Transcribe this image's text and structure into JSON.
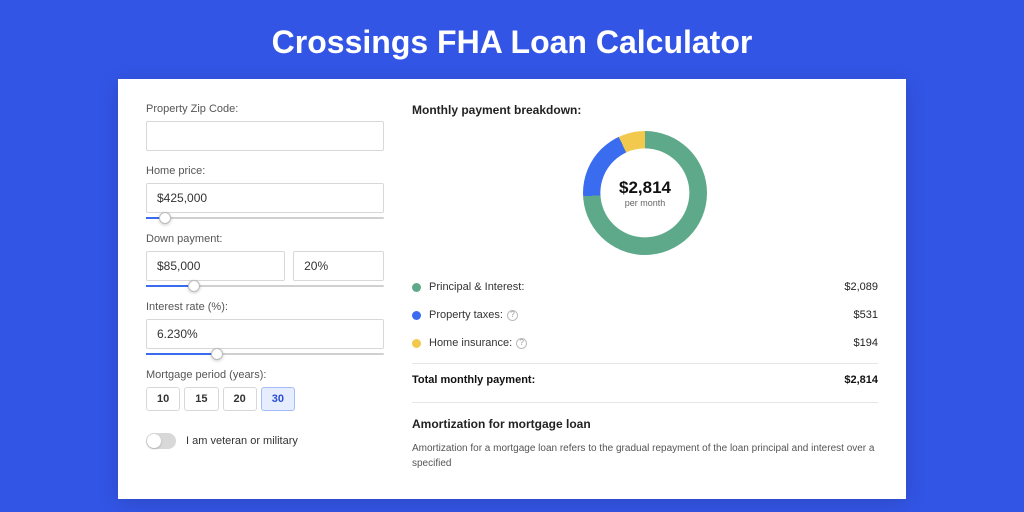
{
  "page_title": "Crossings FHA Loan Calculator",
  "background_color": "#3355e6",
  "card_bg": "#ffffff",
  "inputs": {
    "zip": {
      "label": "Property Zip Code:",
      "value": ""
    },
    "home_price": {
      "label": "Home price:",
      "value": "$425,000",
      "slider_pct": 8
    },
    "down_payment": {
      "label": "Down payment:",
      "amount": "$85,000",
      "pct": "20%",
      "slider_pct": 20
    },
    "interest_rate": {
      "label": "Interest rate (%):",
      "value": "6.230%",
      "slider_pct": 30
    },
    "period": {
      "label": "Mortgage period (years):",
      "options": [
        "10",
        "15",
        "20",
        "30"
      ],
      "active": "30"
    },
    "veteran": {
      "label": "I am veteran or military",
      "on": false
    }
  },
  "breakdown": {
    "heading": "Monthly payment breakdown:",
    "donut": {
      "amount": "$2,814",
      "unit": "per month",
      "slices": [
        {
          "color": "#5da98a",
          "start_deg": 0,
          "end_deg": 267
        },
        {
          "color": "#3a6cf0",
          "start_deg": 267,
          "end_deg": 335
        },
        {
          "color": "#f2c94c",
          "start_deg": 335,
          "end_deg": 360
        }
      ],
      "inner_color": "#ffffff",
      "thickness_pct": 72
    },
    "rows": [
      {
        "color": "#5da98a",
        "label": "Principal & Interest:",
        "help": false,
        "value": "$2,089"
      },
      {
        "color": "#3a6cf0",
        "label": "Property taxes:",
        "help": true,
        "value": "$531"
      },
      {
        "color": "#f2c94c",
        "label": "Home insurance:",
        "help": true,
        "value": "$194"
      }
    ],
    "total": {
      "label": "Total monthly payment:",
      "value": "$2,814"
    }
  },
  "amortization": {
    "title": "Amortization for mortgage loan",
    "text": "Amortization for a mortgage loan refers to the gradual repayment of the loan principal and interest over a specified"
  }
}
